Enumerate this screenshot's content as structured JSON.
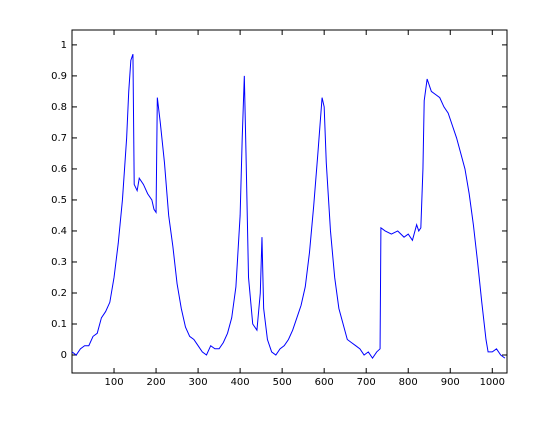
{
  "chart_data": {
    "type": "line",
    "x": [
      0,
      10,
      20,
      30,
      40,
      50,
      60,
      70,
      80,
      90,
      100,
      110,
      120,
      125,
      130,
      135,
      140,
      145,
      148,
      155,
      160,
      170,
      180,
      190,
      195,
      200,
      203,
      210,
      220,
      230,
      240,
      250,
      260,
      270,
      280,
      290,
      300,
      310,
      320,
      330,
      340,
      350,
      360,
      370,
      380,
      390,
      400,
      405,
      410,
      414,
      420,
      430,
      440,
      448,
      452,
      456,
      465,
      475,
      485,
      495,
      505,
      515,
      525,
      535,
      545,
      555,
      565,
      575,
      585,
      595,
      600,
      605,
      615,
      625,
      635,
      645,
      655,
      665,
      675,
      685,
      695,
      705,
      715,
      725,
      733,
      735,
      745,
      760,
      775,
      790,
      800,
      810,
      820,
      825,
      830,
      835,
      838,
      845,
      855,
      865,
      875,
      885,
      895,
      905,
      915,
      925,
      935,
      945,
      955,
      965,
      975,
      985,
      990,
      1000,
      1010,
      1020,
      1030
    ],
    "series": [
      {
        "color": "#0000ff",
        "values": [
          0.01,
          0.0,
          0.02,
          0.03,
          0.03,
          0.06,
          0.07,
          0.12,
          0.14,
          0.17,
          0.25,
          0.36,
          0.5,
          0.6,
          0.7,
          0.85,
          0.95,
          0.97,
          0.55,
          0.53,
          0.57,
          0.55,
          0.52,
          0.5,
          0.47,
          0.46,
          0.83,
          0.75,
          0.62,
          0.45,
          0.35,
          0.23,
          0.15,
          0.09,
          0.06,
          0.05,
          0.03,
          0.01,
          0.0,
          0.03,
          0.02,
          0.02,
          0.04,
          0.07,
          0.12,
          0.22,
          0.45,
          0.7,
          0.9,
          0.65,
          0.25,
          0.1,
          0.08,
          0.2,
          0.38,
          0.15,
          0.05,
          0.01,
          0.0,
          0.02,
          0.03,
          0.05,
          0.08,
          0.12,
          0.16,
          0.22,
          0.33,
          0.48,
          0.65,
          0.83,
          0.8,
          0.62,
          0.4,
          0.25,
          0.15,
          0.1,
          0.05,
          0.04,
          0.03,
          0.02,
          0.0,
          0.01,
          -0.01,
          0.01,
          0.02,
          0.41,
          0.4,
          0.39,
          0.4,
          0.38,
          0.39,
          0.37,
          0.42,
          0.4,
          0.41,
          0.6,
          0.82,
          0.89,
          0.85,
          0.84,
          0.83,
          0.8,
          0.78,
          0.74,
          0.7,
          0.65,
          0.6,
          0.52,
          0.42,
          0.3,
          0.17,
          0.05,
          0.01,
          0.01,
          0.02,
          0.0,
          -0.01
        ]
      }
    ],
    "xlim": [
      0,
      1035
    ],
    "ylim": [
      -0.058,
      1.048
    ],
    "xticks": [
      100,
      200,
      300,
      400,
      500,
      600,
      700,
      800,
      900,
      1000
    ],
    "yticks": [
      0,
      0.1,
      0.2,
      0.3,
      0.4,
      0.5,
      0.6,
      0.7,
      0.8,
      0.9,
      1
    ]
  }
}
